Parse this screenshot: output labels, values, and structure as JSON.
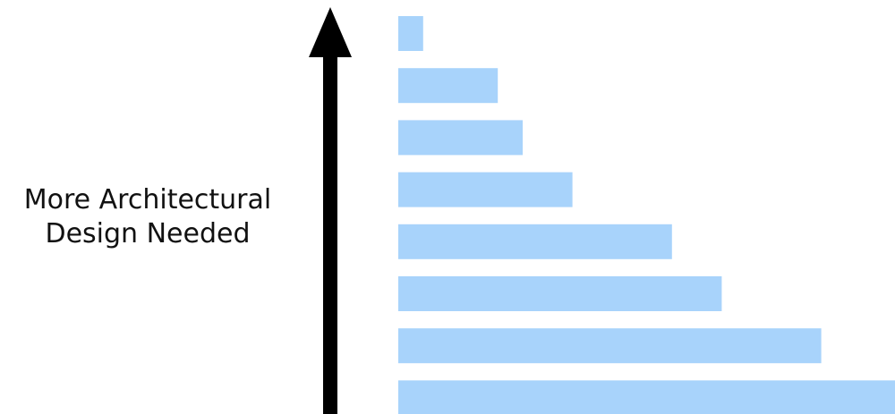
{
  "axis_label": {
    "line1": "More Architectural",
    "line2": "Design Needed"
  },
  "colors": {
    "bar": "#a8d3fb",
    "arrow": "#000000",
    "text": "#111111"
  },
  "chart_data": {
    "type": "bar",
    "orientation": "horizontal",
    "values": [
      1,
      4,
      5,
      7,
      11,
      13,
      17,
      20
    ],
    "order": "top-to-bottom",
    "axis_direction": "up = more architectural design needed"
  }
}
